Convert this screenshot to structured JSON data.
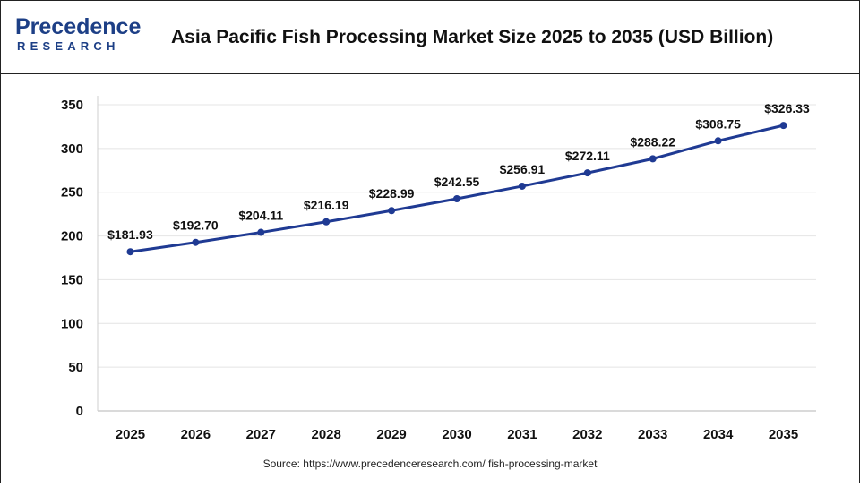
{
  "header": {
    "logo_top": "Precedence",
    "logo_bottom": "RESEARCH",
    "title": "Asia Pacific Fish Processing Market Size 2025 to 2035 (USD Billion)"
  },
  "footer": {
    "source": "Source: https://www.precedenceresearch.com/ fish-processing-market"
  },
  "colors": {
    "line": "#1f3a93",
    "grid": "#e4e4e4",
    "brand": "#1d3f86"
  },
  "chart_data": {
    "type": "line",
    "title": "Asia Pacific Fish Processing Market Size 2025 to 2035 (USD Billion)",
    "xlabel": "",
    "ylabel": "",
    "categories": [
      "2025",
      "2026",
      "2027",
      "2028",
      "2029",
      "2030",
      "2031",
      "2032",
      "2033",
      "2034",
      "2035"
    ],
    "series": [
      {
        "values": [
          181.93,
          192.7,
          204.11,
          216.19,
          228.99,
          242.55,
          256.91,
          272.11,
          288.22,
          308.75,
          326.33
        ],
        "labels": [
          "$181.93",
          "$192.70",
          "$204.11",
          "$216.19",
          "$228.99",
          "$242.55",
          "$256.91",
          "$272.11",
          "$288.22",
          "$308.75",
          "$326.33"
        ]
      }
    ],
    "ylim": [
      0,
      350
    ],
    "yticks": [
      "0",
      "50",
      "100",
      "150",
      "200",
      "250",
      "300",
      "350"
    ],
    "grid": true,
    "legend": "none"
  }
}
